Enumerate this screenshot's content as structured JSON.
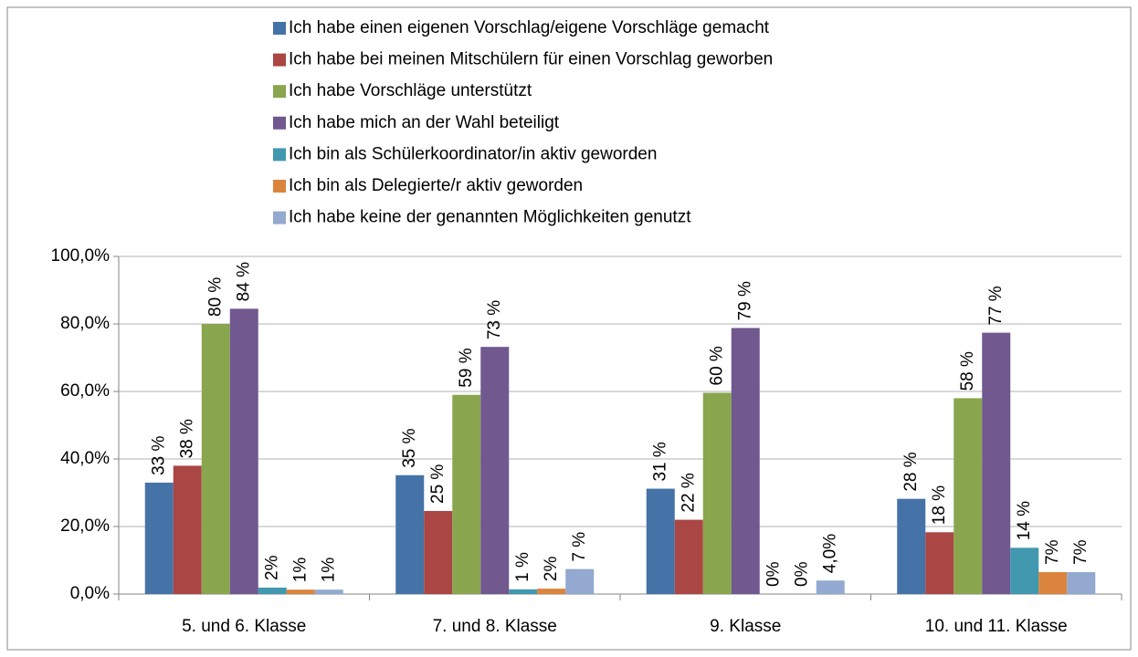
{
  "chart_data": {
    "type": "bar",
    "categories": [
      "5. und 6. Klasse",
      "7. und 8. Klasse",
      "9. Klasse",
      "10. und 11. Klasse"
    ],
    "series": [
      {
        "name": "Ich habe einen eigenen Vorschlag/eigene Vorschläge gemacht",
        "color": "#4572a7",
        "values": [
          33,
          35.2,
          31.2,
          28.2
        ],
        "value_labels": [
          "33 %",
          "35 %",
          "31 %",
          "28 %"
        ]
      },
      {
        "name": "Ich habe bei meinen Mitschülern für einen Vorschlag geworben",
        "color": "#aa4643",
        "values": [
          38,
          24.6,
          22,
          18.3
        ],
        "value_labels": [
          "38 %",
          "25 %",
          "22 %",
          "18 %"
        ]
      },
      {
        "name": "Ich habe Vorschläge unterstützt",
        "color": "#89a54e",
        "values": [
          80,
          59,
          59.6,
          58
        ],
        "value_labels": [
          "80 %",
          "59 %",
          "60 %",
          "58 %"
        ]
      },
      {
        "name": "Ich habe mich an der Wahl beteiligt",
        "color": "#71588f",
        "values": [
          84.5,
          73.2,
          78.8,
          77.4
        ],
        "value_labels": [
          "84 %",
          "73 %",
          "79 %",
          "77 %"
        ]
      },
      {
        "name": "Ich bin als Schülerkoordinator/in aktiv geworden",
        "color": "#4198af",
        "values": [
          1.9,
          1.4,
          0,
          13.7
        ],
        "value_labels": [
          "2%",
          "1 %",
          "0%",
          "14 %"
        ]
      },
      {
        "name": "Ich bin als Delegierte/r aktiv geworden",
        "color": "#db843d",
        "values": [
          1.3,
          1.6,
          0,
          6.5
        ],
        "value_labels": [
          "1%",
          "2%",
          "0%",
          "7%"
        ]
      },
      {
        "name": "Ich habe keine der genannten Möglichkeiten genutzt",
        "color": "#93a9cf",
        "values": [
          1.3,
          7.4,
          4.0,
          6.5
        ],
        "value_labels": [
          "1%",
          "7 %",
          "4,0%",
          "7%"
        ]
      }
    ],
    "ylim": [
      0,
      100
    ],
    "yticks": [
      {
        "value": 0,
        "label": "0,0%"
      },
      {
        "value": 20,
        "label": "20,0%"
      },
      {
        "value": 40,
        "label": "40,0%"
      },
      {
        "value": 60,
        "label": "60,0%"
      },
      {
        "value": 80,
        "label": "80,0%"
      },
      {
        "value": 100,
        "label": "100,0%"
      }
    ],
    "grid": true,
    "legend": "top"
  }
}
